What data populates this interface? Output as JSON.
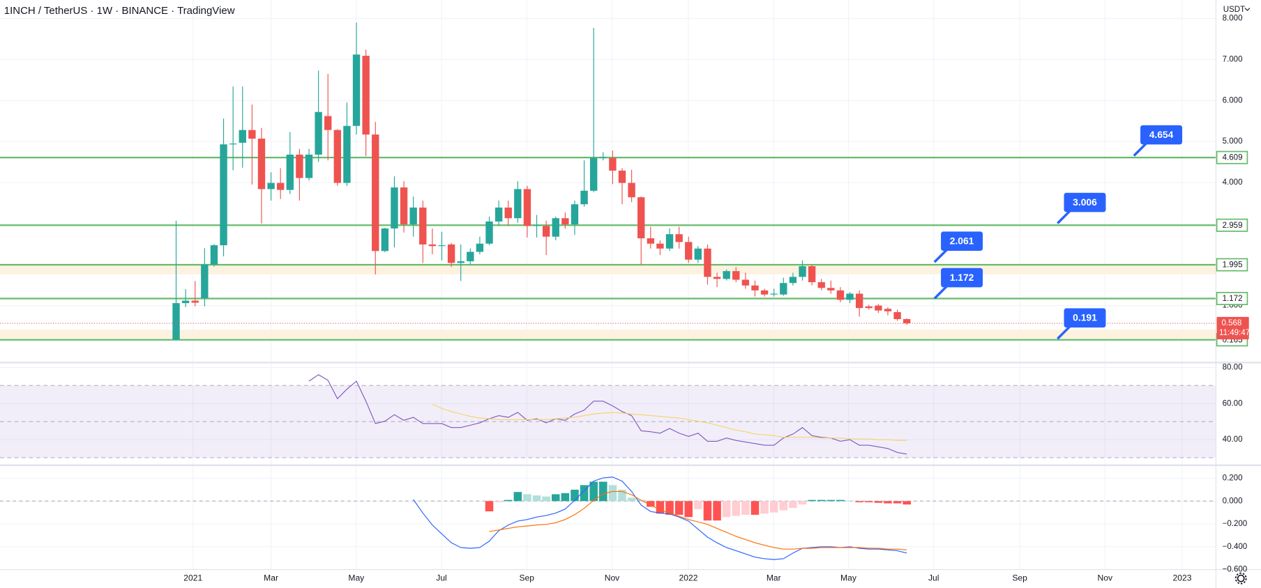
{
  "chart_data": [
    {
      "type": "candlestick",
      "title": "1INCH / TetherUS · 1W · BINANCE · TradingView",
      "currency": "USDT",
      "countdown": "11:49:47",
      "up_color": "#26a69a",
      "down_color": "#ef5350",
      "level_color": "#66bb6a",
      "callout_color": "#2962ff",
      "x_labels": [
        "2021",
        "Mar",
        "May",
        "Jul",
        "Sep",
        "Nov",
        "2022",
        "Mar",
        "May",
        "Jul",
        "Sep",
        "Nov",
        "2023"
      ],
      "ylim": [
        -0.39,
        8.45
      ],
      "yticks": [
        {
          "value": 1,
          "label": "1.000"
        },
        {
          "value": 4,
          "label": "4.000"
        },
        {
          "value": 5,
          "label": "5.000"
        },
        {
          "value": 6,
          "label": "6.000"
        },
        {
          "value": 7,
          "label": "7.000"
        },
        {
          "value": 8,
          "label": "8.000"
        }
      ],
      "levels": [
        4.609,
        2.959,
        1.995,
        1.172,
        0.165
      ],
      "callouts": [
        4.654,
        3.006,
        2.061,
        1.172,
        0.191
      ],
      "open": [
        0.17,
        1.06,
        1.12,
        1.18,
        2.0,
        2.47,
        4.93,
        4.97,
        5.28,
        5.07,
        3.84,
        3.99,
        3.82,
        4.68,
        4.11,
        4.68,
        5.62,
        5.28,
        3.99,
        5.38,
        7.09,
        5.17,
        2.33,
        2.88,
        3.88,
        2.98,
        3.39,
        2.49,
        2.45,
        2.49,
        2.04,
        2.08,
        2.31,
        2.51,
        3.05,
        3.39,
        3.13,
        3.84,
        2.94,
        2.94,
        2.68,
        3.13,
        2.98,
        3.47,
        3.8,
        4.6,
        4.6,
        4.29,
        3.99,
        3.64,
        2.64,
        2.51,
        2.39,
        2.74,
        2.55,
        2.12,
        2.39,
        1.7,
        1.65,
        1.84,
        1.63,
        1.49,
        1.37,
        1.27,
        1.27,
        1.55,
        1.7,
        1.96,
        1.57,
        1.43,
        1.37,
        1.14,
        1.29,
        0.98,
        1.0,
        0.92,
        0.84,
        0.67
      ],
      "high": [
        3.07,
        1.4,
        1.6,
        2.4,
        2.5,
        5.56,
        6.34,
        6.34,
        5.9,
        5.33,
        4.25,
        4.35,
        5.23,
        4.82,
        4.82,
        6.73,
        6.65,
        5.3,
        5.95,
        7.9,
        7.24,
        5.48,
        2.9,
        4.15,
        4.03,
        3.66,
        3.56,
        2.88,
        2.8,
        2.53,
        2.49,
        2.39,
        2.68,
        3.17,
        3.56,
        3.56,
        4.03,
        3.92,
        3.21,
        3.07,
        3.17,
        3.27,
        3.56,
        4.54,
        7.77,
        4.74,
        4.78,
        4.35,
        4.31,
        3.66,
        2.92,
        2.59,
        2.88,
        2.92,
        2.68,
        2.45,
        2.49,
        1.8,
        1.88,
        1.94,
        1.8,
        1.61,
        1.41,
        1.41,
        1.68,
        1.8,
        2.1,
        2.0,
        1.65,
        1.61,
        1.45,
        1.33,
        1.37,
        1.02,
        1.04,
        0.96,
        0.9,
        0.69
      ],
      "low": [
        0.16,
        0.96,
        0.98,
        0.98,
        1.95,
        2.2,
        4.3,
        4.36,
        3.95,
        3.0,
        3.56,
        3.6,
        3.72,
        3.56,
        4.05,
        4.5,
        4.54,
        3.92,
        3.92,
        5.17,
        4.64,
        1.76,
        2.3,
        2.42,
        2.78,
        2.68,
        2.04,
        2.25,
        2.1,
        1.94,
        1.6,
        2.0,
        2.25,
        2.47,
        2.94,
        2.94,
        3.02,
        2.66,
        2.66,
        2.23,
        2.59,
        2.88,
        2.72,
        3.41,
        3.76,
        4.54,
        3.96,
        3.47,
        3.52,
        2.0,
        2.39,
        2.23,
        2.33,
        2.39,
        2.04,
        2.04,
        1.51,
        1.45,
        1.61,
        1.57,
        1.41,
        1.22,
        1.22,
        1.22,
        1.24,
        1.49,
        1.61,
        1.49,
        1.37,
        1.29,
        1.08,
        1.06,
        0.73,
        0.9,
        0.82,
        0.76,
        0.63,
        0.53
      ],
      "close": [
        1.06,
        1.12,
        1.07,
        2.0,
        2.47,
        4.93,
        4.95,
        5.28,
        5.07,
        3.84,
        3.99,
        3.82,
        4.68,
        4.11,
        4.68,
        5.72,
        5.28,
        3.99,
        5.38,
        7.12,
        5.17,
        2.33,
        2.88,
        3.88,
        2.98,
        3.39,
        2.49,
        2.45,
        2.47,
        2.04,
        2.08,
        2.31,
        2.51,
        3.05,
        3.39,
        3.13,
        3.84,
        2.94,
        2.96,
        2.68,
        3.13,
        2.98,
        3.47,
        3.8,
        4.6,
        4.62,
        4.29,
        3.99,
        3.64,
        2.64,
        2.51,
        2.39,
        2.74,
        2.55,
        2.12,
        2.39,
        1.7,
        1.65,
        1.84,
        1.63,
        1.49,
        1.37,
        1.27,
        1.29,
        1.55,
        1.7,
        1.96,
        1.57,
        1.43,
        1.37,
        1.14,
        1.29,
        0.94,
        0.94,
        0.88,
        0.86,
        0.67,
        0.568
      ]
    },
    {
      "type": "line",
      "ylim": [
        26.7,
        82.7
      ],
      "yticks": [
        {
          "value": 40,
          "label": "40.00"
        },
        {
          "value": 60,
          "label": "60.00"
        },
        {
          "value": 80,
          "label": "80.00"
        }
      ],
      "bands": [
        30,
        50,
        70
      ],
      "band_color": "#7e57c2",
      "series": [
        {
          "color": "#7e57c2",
          "values": [
            null,
            null,
            null,
            null,
            null,
            null,
            null,
            null,
            null,
            null,
            null,
            null,
            null,
            null,
            72.4,
            76,
            72.9,
            62.7,
            68,
            72.4,
            61.3,
            48.9,
            50.2,
            53.8,
            50.7,
            52.4,
            48.9,
            48.9,
            48.9,
            46.7,
            46.7,
            48,
            49.3,
            51.6,
            53.3,
            52.4,
            55.1,
            50.7,
            51.6,
            49.3,
            51.6,
            50.7,
            54.2,
            56.4,
            61.3,
            61.3,
            58.7,
            55.6,
            53.3,
            44.9,
            44.4,
            43.6,
            46.2,
            43.6,
            41.8,
            43.6,
            39.1,
            39.1,
            40.9,
            39.6,
            38.7,
            37.8,
            36.9,
            36.9,
            40.9,
            43.1,
            46.7,
            42.2,
            41.3,
            40.9,
            39.1,
            40,
            36.9,
            36.9,
            36,
            35.1,
            32.9,
            32
          ]
        },
        {
          "color": "#f5d36a",
          "values": [
            null,
            null,
            null,
            null,
            null,
            null,
            null,
            null,
            null,
            null,
            null,
            null,
            null,
            null,
            null,
            null,
            null,
            null,
            null,
            null,
            null,
            null,
            null,
            null,
            null,
            null,
            null,
            59.6,
            57.3,
            55.6,
            54.2,
            52.9,
            52.0,
            51.6,
            51.1,
            51.1,
            51.1,
            51.1,
            51.1,
            51.1,
            51.6,
            52.0,
            52.4,
            53.3,
            54.2,
            54.7,
            55.1,
            54.7,
            54.2,
            53.8,
            53.3,
            52.9,
            52.4,
            52.0,
            51.1,
            50.2,
            49.3,
            48.0,
            46.7,
            45.3,
            44.4,
            43.1,
            42.7,
            42.2,
            41.3,
            41.3,
            41.3,
            41.3,
            40.9,
            40.9,
            40.9,
            40.4,
            40.4,
            40.4,
            40.0,
            40.0,
            39.6,
            39.6
          ]
        }
      ]
    },
    {
      "type": "macd",
      "ylim": [
        -0.6,
        0.3
      ],
      "yticks": [
        {
          "value": -0.6,
          "label": "−0.600"
        },
        {
          "value": -0.4,
          "label": "−0.400"
        },
        {
          "value": -0.2,
          "label": "−0.200"
        },
        {
          "value": 0,
          "label": "0.000"
        },
        {
          "value": 0.2,
          "label": "0.200"
        }
      ],
      "histogram": {
        "colors": [
          "#26a69a",
          "#b2dfdb",
          "#ff5252",
          "#ffcdd2"
        ],
        "values": [
          null,
          null,
          null,
          null,
          null,
          null,
          null,
          null,
          null,
          null,
          null,
          null,
          null,
          null,
          null,
          null,
          null,
          null,
          null,
          null,
          null,
          null,
          null,
          null,
          null,
          null,
          null,
          null,
          null,
          null,
          null,
          null,
          null,
          -0.09,
          -0.01,
          0.01,
          0.08,
          0.06,
          0.05,
          0.04,
          0.06,
          0.07,
          0.1,
          0.14,
          0.17,
          0.17,
          0.14,
          0.1,
          0.03,
          0.01,
          -0.05,
          -0.11,
          -0.12,
          -0.12,
          -0.14,
          -0.07,
          -0.17,
          -0.17,
          -0.14,
          -0.13,
          -0.12,
          -0.12,
          -0.11,
          -0.1,
          -0.08,
          -0.06,
          -0.03,
          0.01,
          0.01,
          0.01,
          0.01,
          0.005,
          -0.01,
          -0.01,
          -0.015,
          -0.02,
          -0.02,
          -0.03
        ]
      },
      "series": [
        {
          "color": "#2962ff",
          "values": [
            null,
            null,
            null,
            null,
            null,
            null,
            null,
            null,
            null,
            null,
            null,
            null,
            null,
            null,
            null,
            null,
            null,
            null,
            null,
            null,
            null,
            null,
            null,
            null,
            null,
            0.014,
            -0.105,
            -0.21,
            -0.288,
            -0.365,
            -0.407,
            -0.414,
            -0.407,
            -0.351,
            -0.26,
            -0.21,
            -0.175,
            -0.161,
            -0.14,
            -0.126,
            -0.105,
            -0.07,
            0.007,
            0.091,
            0.175,
            0.204,
            0.211,
            0.175,
            0.084,
            -0.035,
            -0.091,
            -0.105,
            -0.112,
            -0.14,
            -0.175,
            -0.246,
            -0.316,
            -0.365,
            -0.407,
            -0.435,
            -0.463,
            -0.491,
            -0.505,
            -0.512,
            -0.505,
            -0.456,
            -0.414,
            -0.407,
            -0.4,
            -0.4,
            -0.407,
            -0.4,
            -0.414,
            -0.421,
            -0.421,
            -0.428,
            -0.435,
            -0.456
          ]
        },
        {
          "color": "#ff6d00",
          "values": [
            null,
            null,
            null,
            null,
            null,
            null,
            null,
            null,
            null,
            null,
            null,
            null,
            null,
            null,
            null,
            null,
            null,
            null,
            null,
            null,
            null,
            null,
            null,
            null,
            null,
            null,
            null,
            null,
            null,
            null,
            null,
            null,
            null,
            -0.267,
            -0.253,
            -0.239,
            -0.225,
            -0.218,
            -0.21,
            -0.204,
            -0.19,
            -0.161,
            -0.119,
            -0.063,
            0.007,
            0.063,
            0.084,
            0.084,
            0.056,
            0.007,
            -0.035,
            -0.077,
            -0.105,
            -0.133,
            -0.161,
            -0.182,
            -0.204,
            -0.239,
            -0.274,
            -0.309,
            -0.337,
            -0.365,
            -0.386,
            -0.407,
            -0.421,
            -0.421,
            -0.414,
            -0.414,
            -0.407,
            -0.407,
            -0.407,
            -0.407,
            -0.407,
            -0.414,
            -0.414,
            -0.421,
            -0.421,
            -0.428
          ]
        }
      ]
    }
  ]
}
